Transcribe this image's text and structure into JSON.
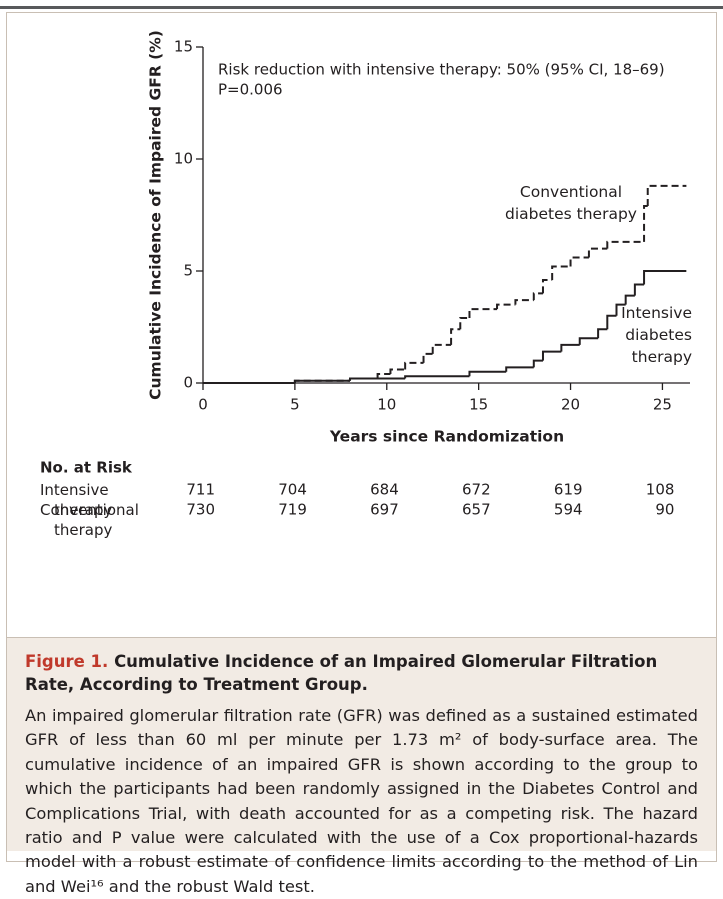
{
  "chart_data": {
    "type": "step",
    "y_label": "Cumulative Incidence of Impaired GFR (%)",
    "x_label": "Years since Randomization",
    "annotations": [
      "Risk reduction with intensive therapy: 50% (95% CI, 18–69)",
      "P=0.006"
    ],
    "xlim": [
      0,
      26.5
    ],
    "ylim": [
      0,
      15
    ],
    "xticks": [
      0,
      5,
      10,
      15,
      20,
      25
    ],
    "yticks": [
      0,
      5,
      10,
      15
    ],
    "series": [
      {
        "name": "Conventional diabetes therapy",
        "color": "#231f20",
        "dash": true,
        "x": [
          0,
          5,
          8,
          9.5,
          10.2,
          11,
          12,
          12.5,
          13.5,
          14,
          14.5,
          16,
          17,
          18,
          18.5,
          19,
          20,
          21,
          22,
          24,
          24.2,
          26.3
        ],
        "values": [
          0,
          0.1,
          0.2,
          0.4,
          0.6,
          0.9,
          1.3,
          1.7,
          2.4,
          2.9,
          3.3,
          3.5,
          3.7,
          4.0,
          4.6,
          5.2,
          5.6,
          6.0,
          6.3,
          7.9,
          8.8,
          8.8
        ]
      },
      {
        "name": "Intensive diabetes therapy",
        "color": "#231f20",
        "dash": false,
        "x": [
          0,
          5,
          8,
          11,
          14.5,
          16.5,
          18,
          18.5,
          19.5,
          20.5,
          21.5,
          22,
          22.5,
          23,
          23.5,
          24,
          26.3
        ],
        "values": [
          0,
          0.1,
          0.2,
          0.3,
          0.5,
          0.7,
          1.0,
          1.4,
          1.7,
          2.0,
          2.4,
          3.0,
          3.5,
          3.9,
          4.4,
          5.0,
          5.0
        ]
      }
    ],
    "risk_table": {
      "title": "No. at Risk",
      "rows": [
        {
          "label": "Intensive therapy",
          "values": [
            711,
            704,
            684,
            672,
            619,
            108
          ]
        },
        {
          "label": "Conventional therapy",
          "values": [
            730,
            719,
            697,
            657,
            594,
            90
          ]
        }
      ]
    }
  },
  "caption": {
    "label": "Figure 1.",
    "title": "Cumulative Incidence of an Impaired Glomerular Filtration Rate, According to Treatment Group.",
    "text": "An impaired glomerular filtration rate (GFR) was defined as a sustained estimated GFR of less than 60 ml per minute per 1.73 m² of body-surface area. The cumulative incidence of an impaired GFR is shown according to the group to which the participants had been randomly assigned in the Diabetes Control and Complications Trial, with death accounted for as a competing risk. The hazard ratio and P value were calculated with the use of a Cox proportional-hazards model with a robust estimate of confidence limits according to the method of Lin and Wei¹⁶ and the robust Wald test."
  }
}
